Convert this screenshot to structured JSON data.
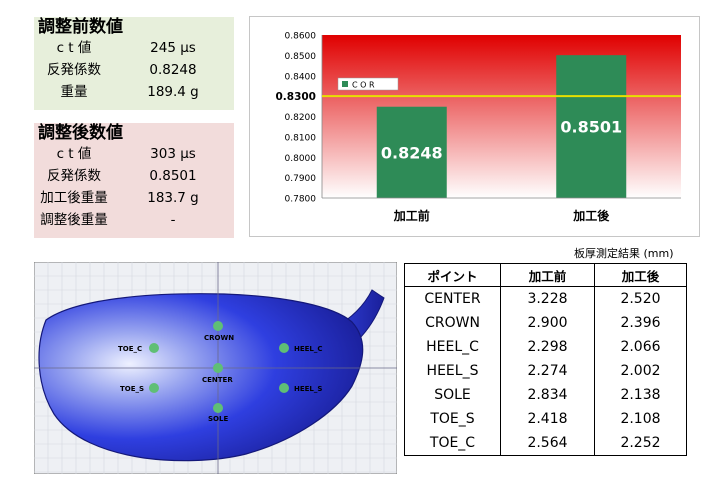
{
  "before": {
    "title": "調整前数値",
    "rows": [
      {
        "label": "c t 値",
        "value": "245 μs"
      },
      {
        "label": "反発係数",
        "value": "0.8248"
      },
      {
        "label": "重量",
        "value": "189.4 g"
      }
    ]
  },
  "after": {
    "title": "調整後数値",
    "rows": [
      {
        "label": "c t 値",
        "value": "303 μs"
      },
      {
        "label": "反発係数",
        "value": "0.8501"
      },
      {
        "label": "加工後重量",
        "value": "183.7 g"
      },
      {
        "label": "調整後重量",
        "value": "-"
      }
    ]
  },
  "chart_data": {
    "type": "bar",
    "categories": [
      "加工前",
      "加工後"
    ],
    "series": [
      {
        "name": "COR",
        "values": [
          0.8248,
          0.8501
        ]
      }
    ],
    "data_labels": [
      "0.8248",
      "0.8501"
    ],
    "ylim": [
      0.78,
      0.86
    ],
    "yticks": [
      "0.7800",
      "0.7900",
      "0.8000",
      "0.8100",
      "0.8200",
      "0.8300",
      "0.8400",
      "0.8500",
      "0.8600"
    ],
    "threshold": {
      "value": 0.83,
      "label": "0.8300",
      "color": "#e8e000"
    },
    "legend": {
      "label": "C O R",
      "position": "top-left"
    },
    "bar_color": "#2e8b57",
    "bg_gradient_top": "#e00000",
    "bg_gradient_bottom": "#ffffff",
    "grid": false
  },
  "table": {
    "caption": "板厚測定結果 (mm)",
    "headers": [
      "ポイント",
      "加工前",
      "加工後"
    ],
    "rows": [
      [
        "CENTER",
        "3.228",
        "2.520"
      ],
      [
        "CROWN",
        "2.900",
        "2.396"
      ],
      [
        "HEEL_C",
        "2.298",
        "2.066"
      ],
      [
        "HEEL_S",
        "2.274",
        "2.002"
      ],
      [
        "SOLE",
        "2.834",
        "2.138"
      ],
      [
        "TOE_S",
        "2.418",
        "2.108"
      ],
      [
        "TOE_C",
        "2.564",
        "2.252"
      ]
    ]
  },
  "head_points": {
    "toe_c": "TOE_C",
    "crown": "CROWN",
    "heel_c": "HEEL_C",
    "center": "CENTER",
    "toe_s": "TOE_S",
    "heel_s": "HEEL_S",
    "sole": "SOLE"
  }
}
